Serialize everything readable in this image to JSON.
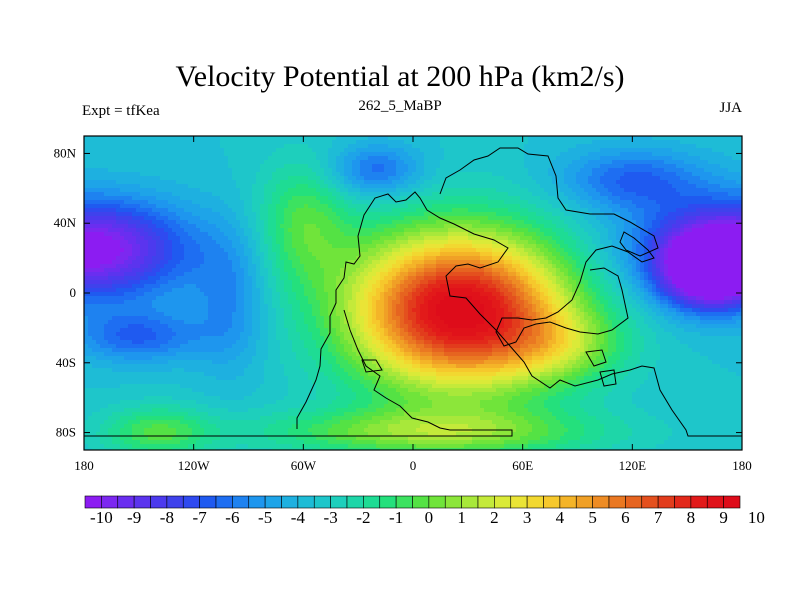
{
  "title": "Velocity Potential at 200 hPa (km2/s)",
  "left_subtitle": "Expt = tfKea",
  "center_subtitle": "262_5_MaBP",
  "right_subtitle": "JJA",
  "chart_data": {
    "type": "heatmap",
    "x_ticks": [
      {
        "value": -180,
        "label": "180"
      },
      {
        "value": -120,
        "label": "120W"
      },
      {
        "value": -60,
        "label": "60W"
      },
      {
        "value": 0,
        "label": "0"
      },
      {
        "value": 60,
        "label": "60E"
      },
      {
        "value": 120,
        "label": "120E"
      },
      {
        "value": 180,
        "label": "180"
      }
    ],
    "y_ticks": [
      {
        "value": 80,
        "label": "80N"
      },
      {
        "value": 40,
        "label": "40N"
      },
      {
        "value": 0,
        "label": "0"
      },
      {
        "value": -40,
        "label": "40S"
      },
      {
        "value": -80,
        "label": "80S"
      }
    ],
    "xlim": [
      -180,
      180
    ],
    "ylim": [
      -90,
      90
    ],
    "colorbar": {
      "levels": [
        -10,
        -9.5,
        -9,
        -8.5,
        -8,
        -7.5,
        -7,
        -6.5,
        -6,
        -5.5,
        -5,
        -4.5,
        -4,
        -3.5,
        -3,
        -2.5,
        -2,
        -1.5,
        -1,
        -0.5,
        0,
        0.5,
        1,
        1.5,
        2,
        2.5,
        3,
        3.5,
        4,
        4.5,
        5,
        5.5,
        6,
        6.5,
        7,
        7.5,
        8,
        8.5,
        9,
        9.5,
        10
      ],
      "labels": [
        "-10",
        "-9",
        "-8",
        "-7",
        "-6",
        "-5",
        "-4",
        "-3",
        "-2",
        "-1",
        "0",
        "1",
        "2",
        "3",
        "4",
        "5",
        "6",
        "7",
        "8",
        "9",
        "10"
      ],
      "colors": [
        "#8c1cf2",
        "#7c28f0",
        "#6a2ef0",
        "#5b34ee",
        "#4c3aee",
        "#3f42ec",
        "#2f4af0",
        "#1f5af0",
        "#1e6ef2",
        "#1e82f0",
        "#1e96ee",
        "#1ea4e8",
        "#1eb0e0",
        "#1ebcd6",
        "#1ec6ca",
        "#1ecfbc",
        "#1ed6a8",
        "#1edc94",
        "#24e07c",
        "#3ce260",
        "#54e244",
        "#70e43a",
        "#8ce63a",
        "#a8e83a",
        "#c4ea3a",
        "#daea38",
        "#eae436",
        "#f2d830",
        "#f6c82c",
        "#f4b428",
        "#f0a026",
        "#ee8c24",
        "#ea7822",
        "#e66420",
        "#e4501e",
        "#e23c1c",
        "#e2281a",
        "#e21a1a",
        "#e0121a",
        "#de0c1a"
      ]
    },
    "field_centers": [
      {
        "lon": 20,
        "lat": -15,
        "value": 10
      },
      {
        "lon": -180,
        "lat": 25,
        "value": -10
      },
      {
        "lon": 160,
        "lat": 15,
        "value": -10
      }
    ]
  }
}
